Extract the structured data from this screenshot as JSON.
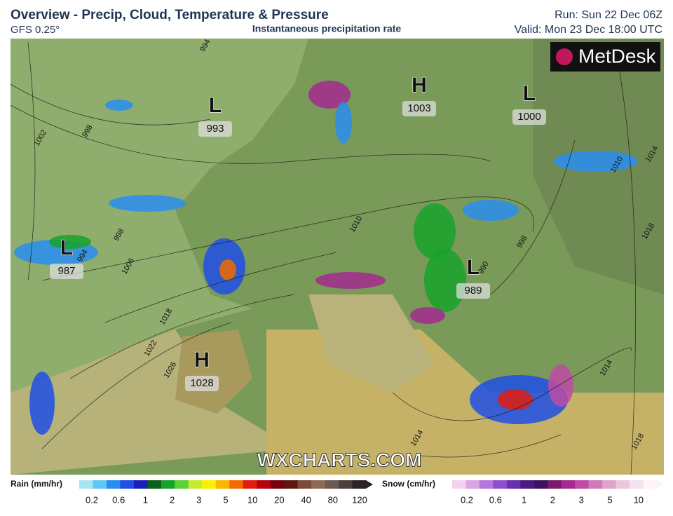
{
  "header": {
    "title": "Overview - Precip, Cloud, Temperature & Pressure",
    "model": "GFS 0.25°",
    "subtitle": "Instantaneous precipitation rate",
    "run": "Run: Sun 22 Dec 06Z",
    "valid": "Valid: Mon 23 Dec 18:00 UTC",
    "logo": "MetDesk"
  },
  "pressure_centers": [
    {
      "symbol": "L",
      "value": 993
    },
    {
      "symbol": "H",
      "value": 1003
    },
    {
      "symbol": "L",
      "value": 1000
    },
    {
      "symbol": "L",
      "value": 987
    },
    {
      "symbol": "L",
      "value": 989
    },
    {
      "symbol": "H",
      "value": 1028
    }
  ],
  "isobar_labels": [
    994,
    998,
    1002,
    1006,
    998,
    994,
    1010,
    1018,
    1022,
    1026,
    990,
    998,
    1010,
    1014,
    1018,
    1014,
    1014,
    1018
  ],
  "watermark": "WXCHARTS.COM",
  "rain_legend": {
    "title": "Rain (mm/hr)",
    "ticks": [
      0.2,
      0.6,
      1,
      2,
      3,
      5,
      10,
      20,
      40,
      80,
      120
    ],
    "colors": [
      "#a8e4f0",
      "#5fc7f5",
      "#2a8df0",
      "#1f4fe6",
      "#1a1fb8",
      "#0b5e1c",
      "#18a22c",
      "#5ad13a",
      "#c6ec2e",
      "#f7f200",
      "#f9b800",
      "#f56a00",
      "#e11c0c",
      "#b5000e",
      "#7a0010",
      "#5a1a10",
      "#7a4a32",
      "#8e6a55",
      "#6a5a55",
      "#4a4040",
      "#2a2424"
    ]
  },
  "snow_legend": {
    "title": "Snow (cm/hr)",
    "ticks": [
      0.2,
      0.6,
      1,
      2,
      3,
      5,
      10
    ],
    "colors": [
      "#f4d2ef",
      "#dca3e6",
      "#b676dc",
      "#8c4fd0",
      "#6a2fae",
      "#4a1a7e",
      "#3a1460",
      "#7a1a6a",
      "#a32a8e",
      "#c04aa6",
      "#d07ab8",
      "#dfa3cc",
      "#ecc6de",
      "#f6e2ee",
      "#fdf4fa"
    ]
  }
}
